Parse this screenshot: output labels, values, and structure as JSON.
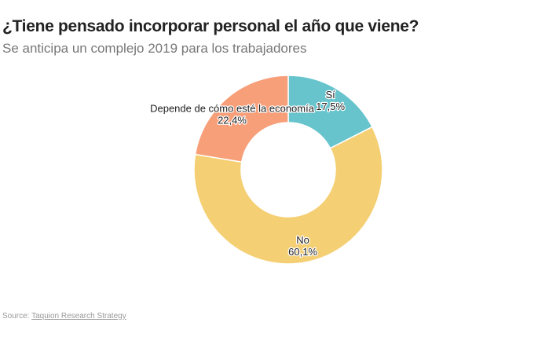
{
  "chart_data": {
    "type": "pie",
    "variant": "donut",
    "title": "¿Tiene pensado incorporar personal el año que viene?",
    "subtitle": "Se anticipa un complejo 2019 para los trabajadores",
    "slices": [
      {
        "label": "Sí",
        "value": 17.5,
        "value_label": "17,5%",
        "color": "#67c4cc"
      },
      {
        "label": "No",
        "value": 60.1,
        "value_label": "60,1%",
        "color": "#f5cf73"
      },
      {
        "label": "Depende de cómo esté la economía",
        "value": 22.4,
        "value_label": "22,4%",
        "color": "#f79f79"
      }
    ],
    "start_angle": "top",
    "direction": "clockwise",
    "legend": "none"
  },
  "source": {
    "prefix": "Source:",
    "link_text": "Taquion Research Strategy"
  }
}
